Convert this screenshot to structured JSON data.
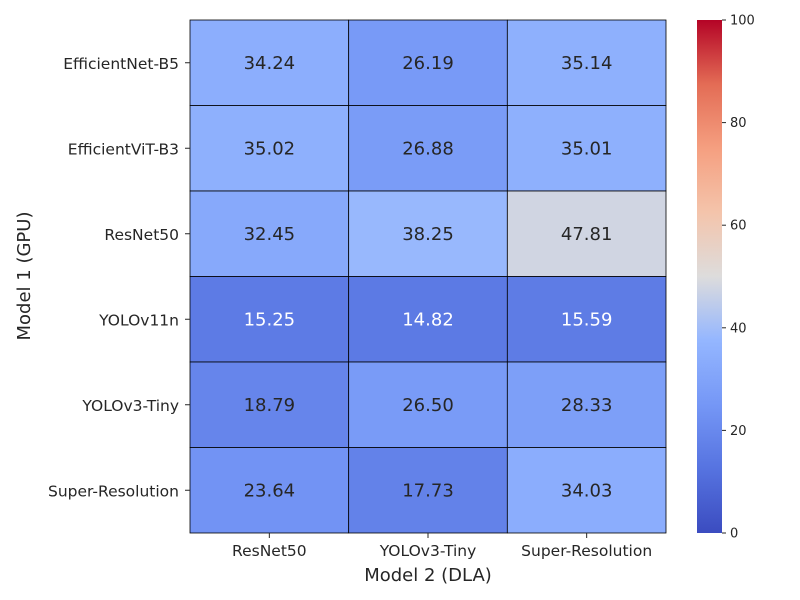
{
  "chart_data": {
    "type": "heatmap",
    "title": "",
    "xlabel": "Model 2 (DLA)",
    "ylabel": "Model 1 (GPU)",
    "x_categories": [
      "ResNet50",
      "YOLOv3-Tiny",
      "Super-Resolution"
    ],
    "y_categories": [
      "EfficientNet-B5",
      "EfficientViT-B3",
      "ResNet50",
      "YOLOv11n",
      "YOLOv3-Tiny",
      "Super-Resolution"
    ],
    "values": [
      [
        34.24,
        26.19,
        35.14
      ],
      [
        35.02,
        26.88,
        35.01
      ],
      [
        32.45,
        38.25,
        47.81
      ],
      [
        15.25,
        14.82,
        15.59
      ],
      [
        18.79,
        26.5,
        28.33
      ],
      [
        23.64,
        17.73,
        34.03
      ]
    ],
    "colormap": "coolwarm",
    "vmin": 0,
    "vmax": 100,
    "colorbar_ticks": [
      0,
      20,
      40,
      60,
      80,
      100
    ],
    "cell_border_color": "#000000",
    "label_dark_color": "#262626",
    "label_light_color": "#ffffff"
  }
}
